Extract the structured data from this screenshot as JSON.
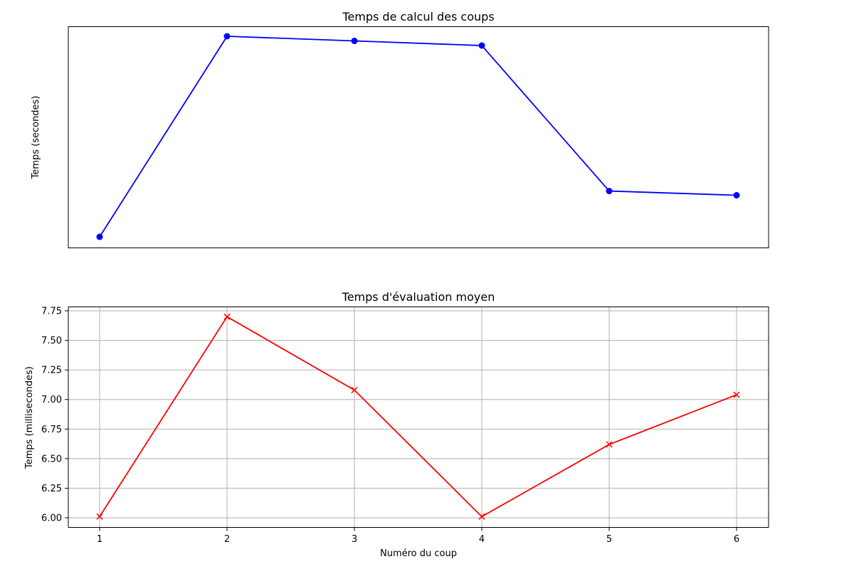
{
  "chart_data": [
    {
      "type": "line",
      "title": "Temps de calcul des coups",
      "xlabel": "",
      "ylabel": "Temps (secondes)",
      "x_ticks_visible": false,
      "y_ticks_visible": false,
      "grid": false,
      "marker": "circle",
      "color": "#0000ff",
      "x": [
        1,
        2,
        3,
        4,
        5,
        6
      ],
      "series": [
        {
          "values": [
            0.05,
            1.0,
            0.978,
            0.956,
            0.267,
            0.247
          ]
        }
      ],
      "ylim": [
        0.0,
        1.05
      ]
    },
    {
      "type": "line",
      "title": "Temps d'évaluation moyen",
      "xlabel": "Numéro du coup",
      "ylabel": "Temps (millisecondes)",
      "x_ticks": [
        "1",
        "2",
        "3",
        "4",
        "5",
        "6"
      ],
      "y_ticks": [
        "6.00",
        "6.25",
        "6.50",
        "6.75",
        "7.00",
        "7.25",
        "7.50",
        "7.75"
      ],
      "grid": true,
      "marker": "x",
      "color": "#ff0000",
      "x": [
        1,
        2,
        3,
        4,
        5,
        6
      ],
      "series": [
        {
          "values": [
            6.01,
            7.7,
            7.08,
            6.01,
            6.62,
            7.04
          ]
        }
      ],
      "ylim": [
        5.925,
        7.775
      ]
    }
  ]
}
